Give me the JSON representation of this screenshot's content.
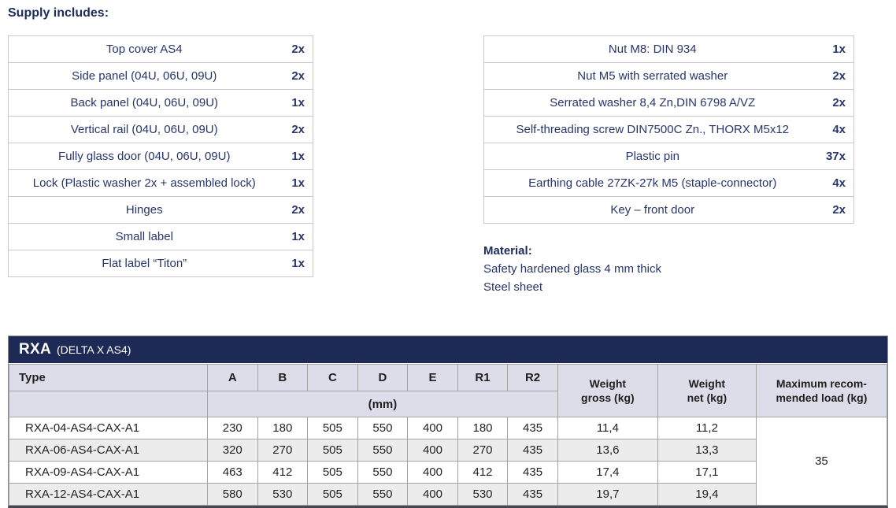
{
  "page": {
    "title": "Supply includes:"
  },
  "supply_left": {
    "rows": [
      {
        "label": "Top cover AS4",
        "qty": "2x"
      },
      {
        "label": "Side panel (04U, 06U, 09U)",
        "qty": "2x"
      },
      {
        "label": "Back panel (04U, 06U, 09U)",
        "qty": "1x"
      },
      {
        "label": "Vertical rail (04U, 06U, 09U)",
        "qty": "2x"
      },
      {
        "label": "Fully glass door (04U, 06U, 09U)",
        "qty": "1x"
      },
      {
        "label": "Lock (Plastic washer 2x + assembled lock)",
        "qty": "1x"
      },
      {
        "label": "Hinges",
        "qty": "2x"
      },
      {
        "label": "Small label",
        "qty": "1x"
      },
      {
        "label": "Flat label “Titon”",
        "qty": "1x"
      }
    ]
  },
  "supply_right": {
    "rows": [
      {
        "label": "Nut M8: DIN 934",
        "qty": "1x"
      },
      {
        "label": "Nut M5 with serrated washer",
        "qty": "2x"
      },
      {
        "label": "Serrated washer 8,4 Zn,DIN 6798 A/VZ",
        "qty": "2x"
      },
      {
        "label": "Self-threading screw DIN7500C Zn., THORX M5x12",
        "qty": "4x"
      },
      {
        "label": "Plastic pin",
        "qty": "37x"
      },
      {
        "label": "Earthing cable 27ZK-27k M5 (staple-connector)",
        "qty": "4x"
      },
      {
        "label": "Key – front door",
        "qty": "2x"
      }
    ]
  },
  "material": {
    "title": "Material:",
    "lines": [
      "Safety hardened glass 4 mm thick",
      "Steel sheet"
    ]
  },
  "spec_table": {
    "title": "RXA",
    "subtitle": "(DELTA X AS4)",
    "col_type": "Type",
    "dim_cols": [
      "A",
      "B",
      "C",
      "D",
      "E",
      "R1",
      "R2"
    ],
    "unit_label": "(mm)",
    "weight_gross_label": "Weight\ngross (kg)",
    "weight_net_label": "Weight\nnet (kg)",
    "max_load_label": "Maximum recom-\nmended load (kg)",
    "rows": [
      {
        "type": "RXA-04-AS4-CAX-A1",
        "values": [
          "230",
          "180",
          "505",
          "550",
          "400",
          "180",
          "435"
        ],
        "gross": "11,4",
        "net": "11,2"
      },
      {
        "type": "RXA-06-AS4-CAX-A1",
        "values": [
          "320",
          "270",
          "505",
          "550",
          "400",
          "270",
          "435"
        ],
        "gross": "13,6",
        "net": "13,3"
      },
      {
        "type": "RXA-09-AS4-CAX-A1",
        "values": [
          "463",
          "412",
          "505",
          "550",
          "400",
          "412",
          "435"
        ],
        "gross": "17,4",
        "net": "17,1"
      },
      {
        "type": "RXA-12-AS4-CAX-A1",
        "values": [
          "580",
          "530",
          "505",
          "550",
          "400",
          "530",
          "435"
        ],
        "gross": "19,7",
        "net": "19,4"
      }
    ],
    "max_load": "35"
  },
  "colors": {
    "navy_text": "#27356b",
    "navy_bar": "#1d2a55",
    "header_bg": "#dcdde8",
    "stripe_bg": "#ececec",
    "table_border": "#c9c9c9",
    "grid_border": "#a3a3a3"
  }
}
